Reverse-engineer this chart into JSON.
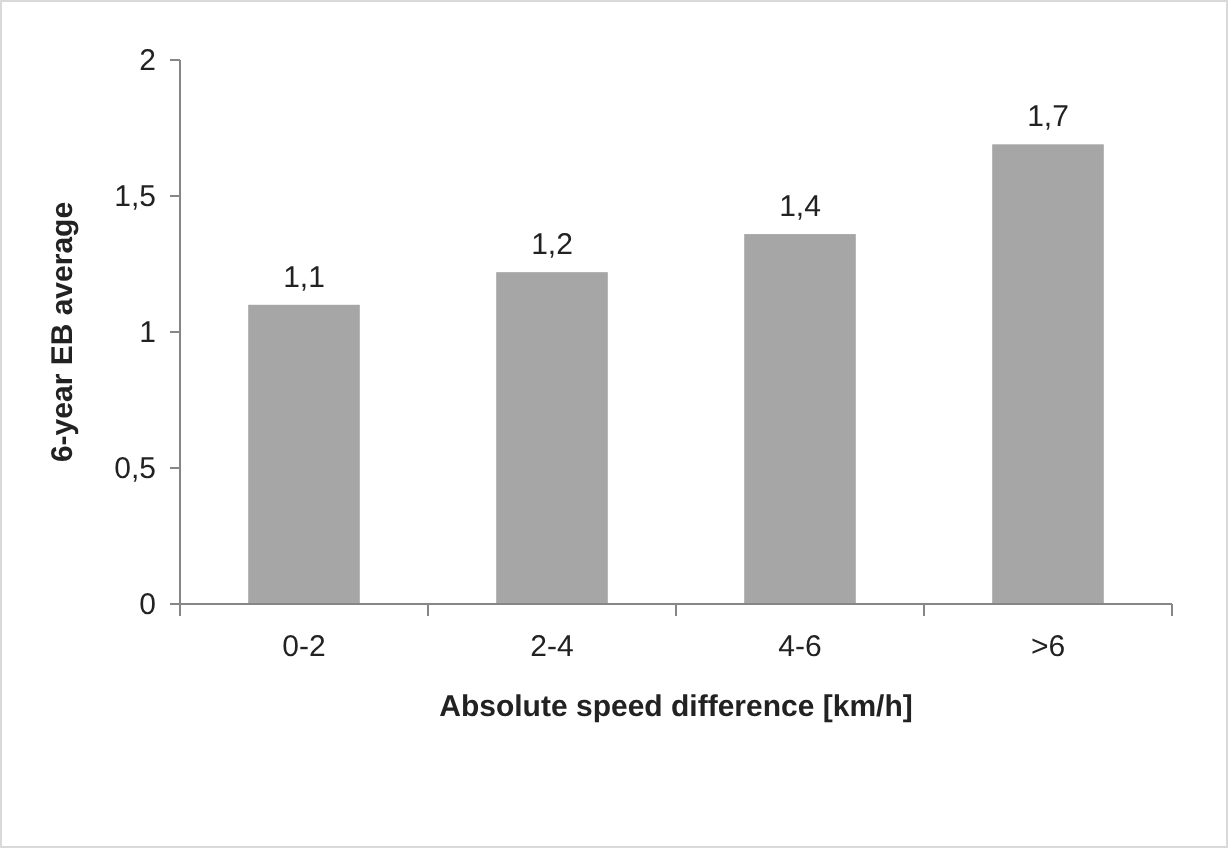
{
  "chart_data": {
    "type": "bar",
    "xlabel": "Absolute speed difference [km/h]",
    "ylabel": "6-year EB average",
    "categories": [
      "0-2",
      "2-4",
      "4-6",
      ">6"
    ],
    "values": [
      1.1,
      1.22,
      1.36,
      1.69
    ],
    "value_labels": [
      "1,1",
      "1,2",
      "1,4",
      "1,7"
    ],
    "color": "#a6a6a6",
    "ylim": [
      0,
      2
    ],
    "yticks": [
      0,
      {
        "value": 0.5,
        "label": "0,5"
      },
      1,
      {
        "value": 1.5,
        "label": "1,5"
      },
      2
    ],
    "grid": false
  }
}
